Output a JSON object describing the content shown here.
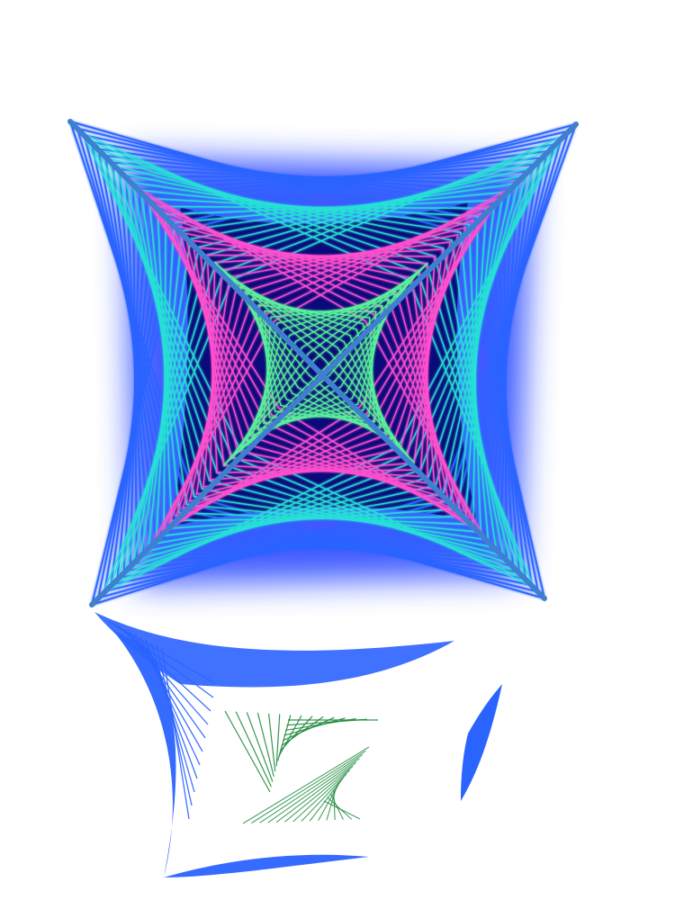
{
  "image": {
    "subject": "string-art",
    "palette": {
      "background": "#ffffff",
      "backdrop": "#0a0a7a",
      "backdrop_glow": "#1f3cff",
      "frame": "#3f7fd0",
      "outer_threads": "#2b63ff",
      "cyan_threads": "#27e0d6",
      "magenta_threads": "#ff4fcf",
      "green_threads": "#59f29a",
      "reflection_green": "#1f8a3e"
    }
  }
}
